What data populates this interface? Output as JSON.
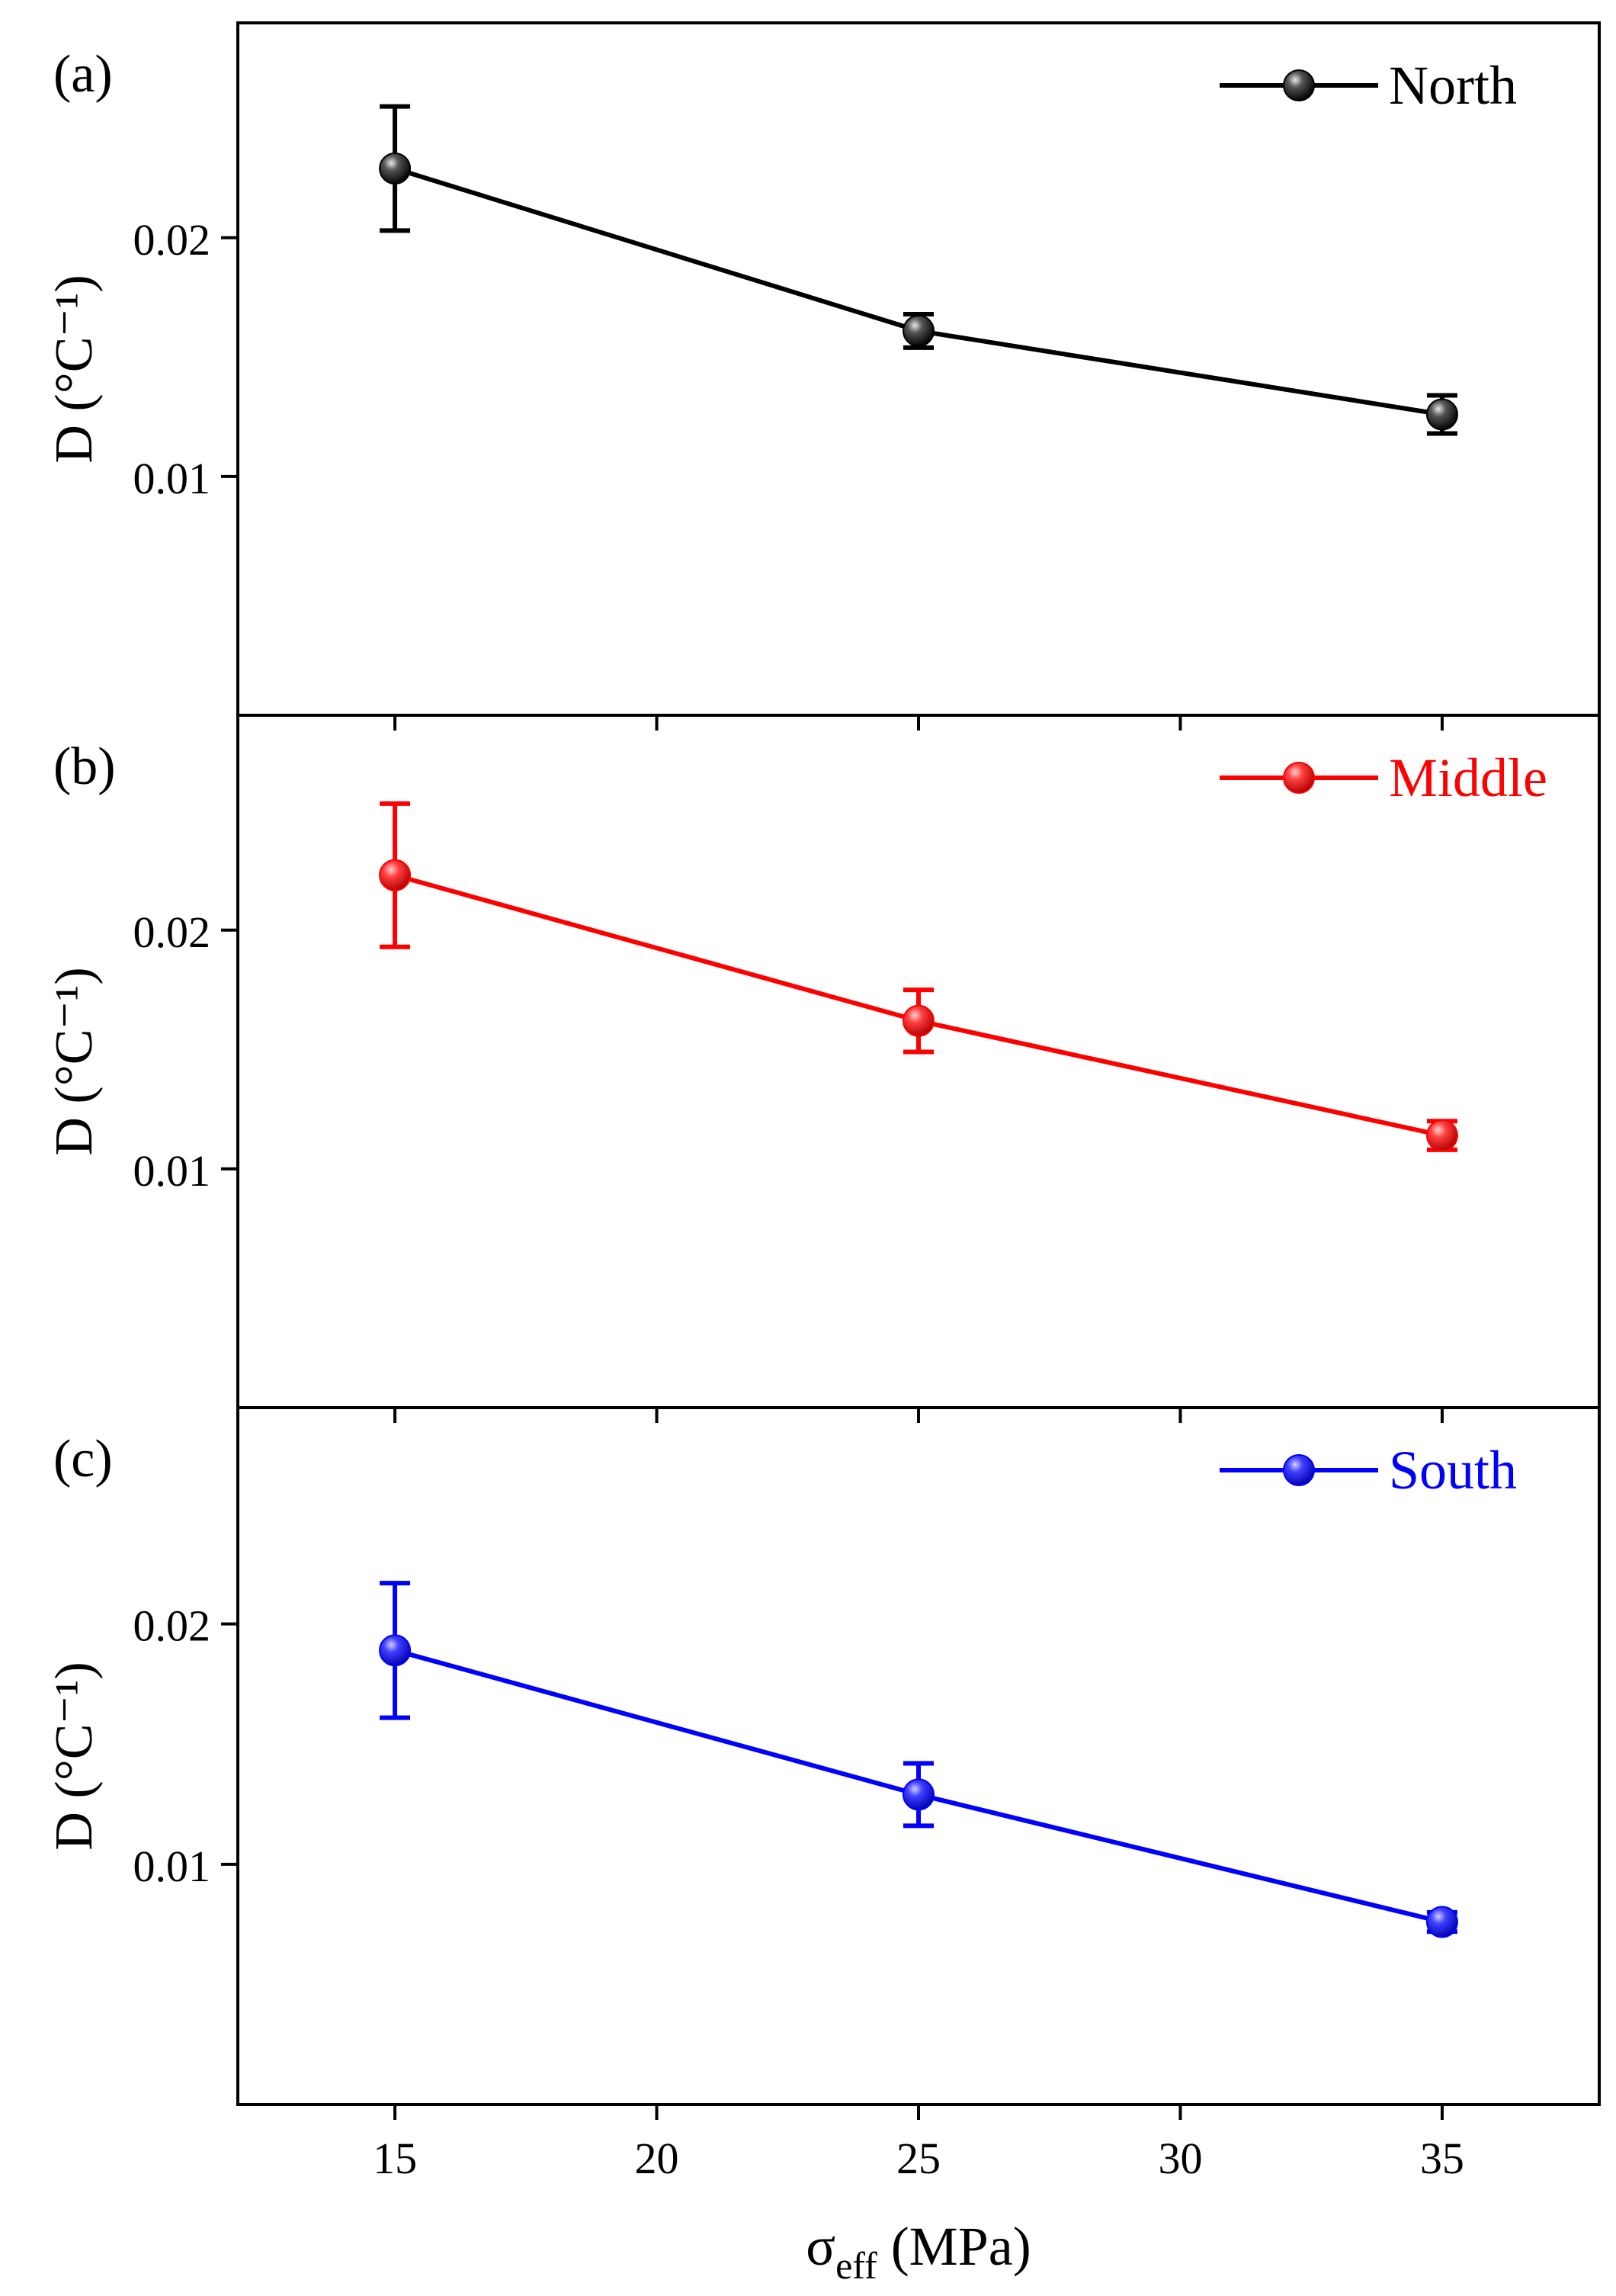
{
  "figure": {
    "xlabel_main": "σ",
    "xlabel_sub": "eff",
    "xlabel_unit": " (MPa)"
  },
  "chart_data": [
    {
      "type": "line",
      "panel_label": "(a)",
      "ylabel": "D (°C⁻¹)",
      "xlabel": "σeff (MPa)",
      "xlim": [
        12,
        38
      ],
      "ylim": [
        0,
        0.029
      ],
      "x_ticks": [
        "15",
        "20",
        "25",
        "30",
        "35"
      ],
      "y_ticks": [
        {
          "value": 0.01,
          "label": "0.01"
        },
        {
          "value": 0.02,
          "label": "0.02"
        }
      ],
      "legend_position": "top-right",
      "series": [
        {
          "name": "North",
          "color": "#000000",
          "x": [
            15,
            25,
            35
          ],
          "y": [
            0.0229,
            0.0161,
            0.0126
          ],
          "error": [
            0.0026,
            0.0007,
            0.0008
          ]
        }
      ]
    },
    {
      "type": "line",
      "panel_label": "(b)",
      "ylabel": "D (°C⁻¹)",
      "xlabel": "σeff (MPa)",
      "xlim": [
        12,
        38
      ],
      "ylim": [
        0,
        0.029
      ],
      "x_ticks": [
        "15",
        "20",
        "25",
        "30",
        "35"
      ],
      "y_ticks": [
        {
          "value": 0.01,
          "label": "0.01"
        },
        {
          "value": 0.02,
          "label": "0.02"
        }
      ],
      "legend_position": "top-right",
      "series": [
        {
          "name": "Middle",
          "color": "#ff0000",
          "x": [
            15,
            25,
            35
          ],
          "y": [
            0.0223,
            0.0162,
            0.0114
          ],
          "error": [
            0.003,
            0.0013,
            0.0006
          ]
        }
      ]
    },
    {
      "type": "line",
      "panel_label": "(c)",
      "ylabel": "D (°C⁻¹)",
      "xlabel": "σeff (MPa)",
      "xlim": [
        12,
        38
      ],
      "ylim": [
        0,
        0.029
      ],
      "x_ticks": [
        "15",
        "20",
        "25",
        "30",
        "35"
      ],
      "y_ticks": [
        {
          "value": 0.01,
          "label": "0.01"
        },
        {
          "value": 0.02,
          "label": "0.02"
        }
      ],
      "legend_position": "top-right",
      "series": [
        {
          "name": "South",
          "color": "#0000ff",
          "x": [
            15,
            25,
            35
          ],
          "y": [
            0.0189,
            0.0129,
            0.0076
          ],
          "error": [
            0.0028,
            0.0013,
            0.0004
          ]
        }
      ]
    }
  ]
}
